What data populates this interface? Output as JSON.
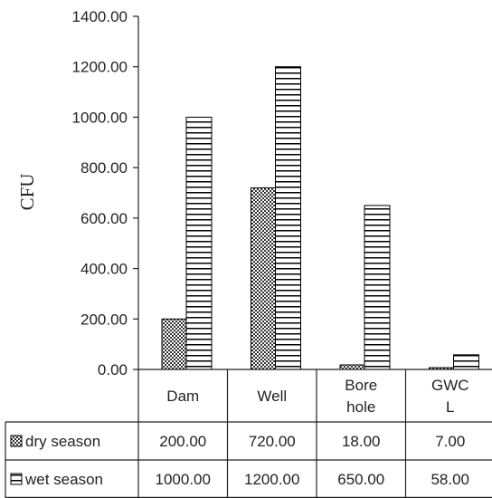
{
  "chart_data": {
    "type": "bar",
    "ylabel": "CFU",
    "ylim": [
      0,
      1400
    ],
    "yticks": [
      "0.00",
      "200.00",
      "400.00",
      "600.00",
      "800.00",
      "1000.00",
      "1200.00",
      "1400.00"
    ],
    "grid": false,
    "categories": [
      [
        "Dam"
      ],
      [
        "Well"
      ],
      [
        "Bore",
        "hole"
      ],
      [
        "GWC",
        "L"
      ]
    ],
    "series": [
      {
        "name": "dry season",
        "values": [
          200,
          720,
          18,
          7
        ],
        "value_labels": [
          "200.00",
          "720.00",
          "18.00",
          "7.00"
        ],
        "pattern": "checker"
      },
      {
        "name": "wet season",
        "values": [
          1000,
          1200,
          650,
          58
        ],
        "value_labels": [
          "1000.00",
          "1200.00",
          "650.00",
          "58.00"
        ],
        "pattern": "horizontal-lines"
      }
    ],
    "legend": "data-table-rows"
  }
}
